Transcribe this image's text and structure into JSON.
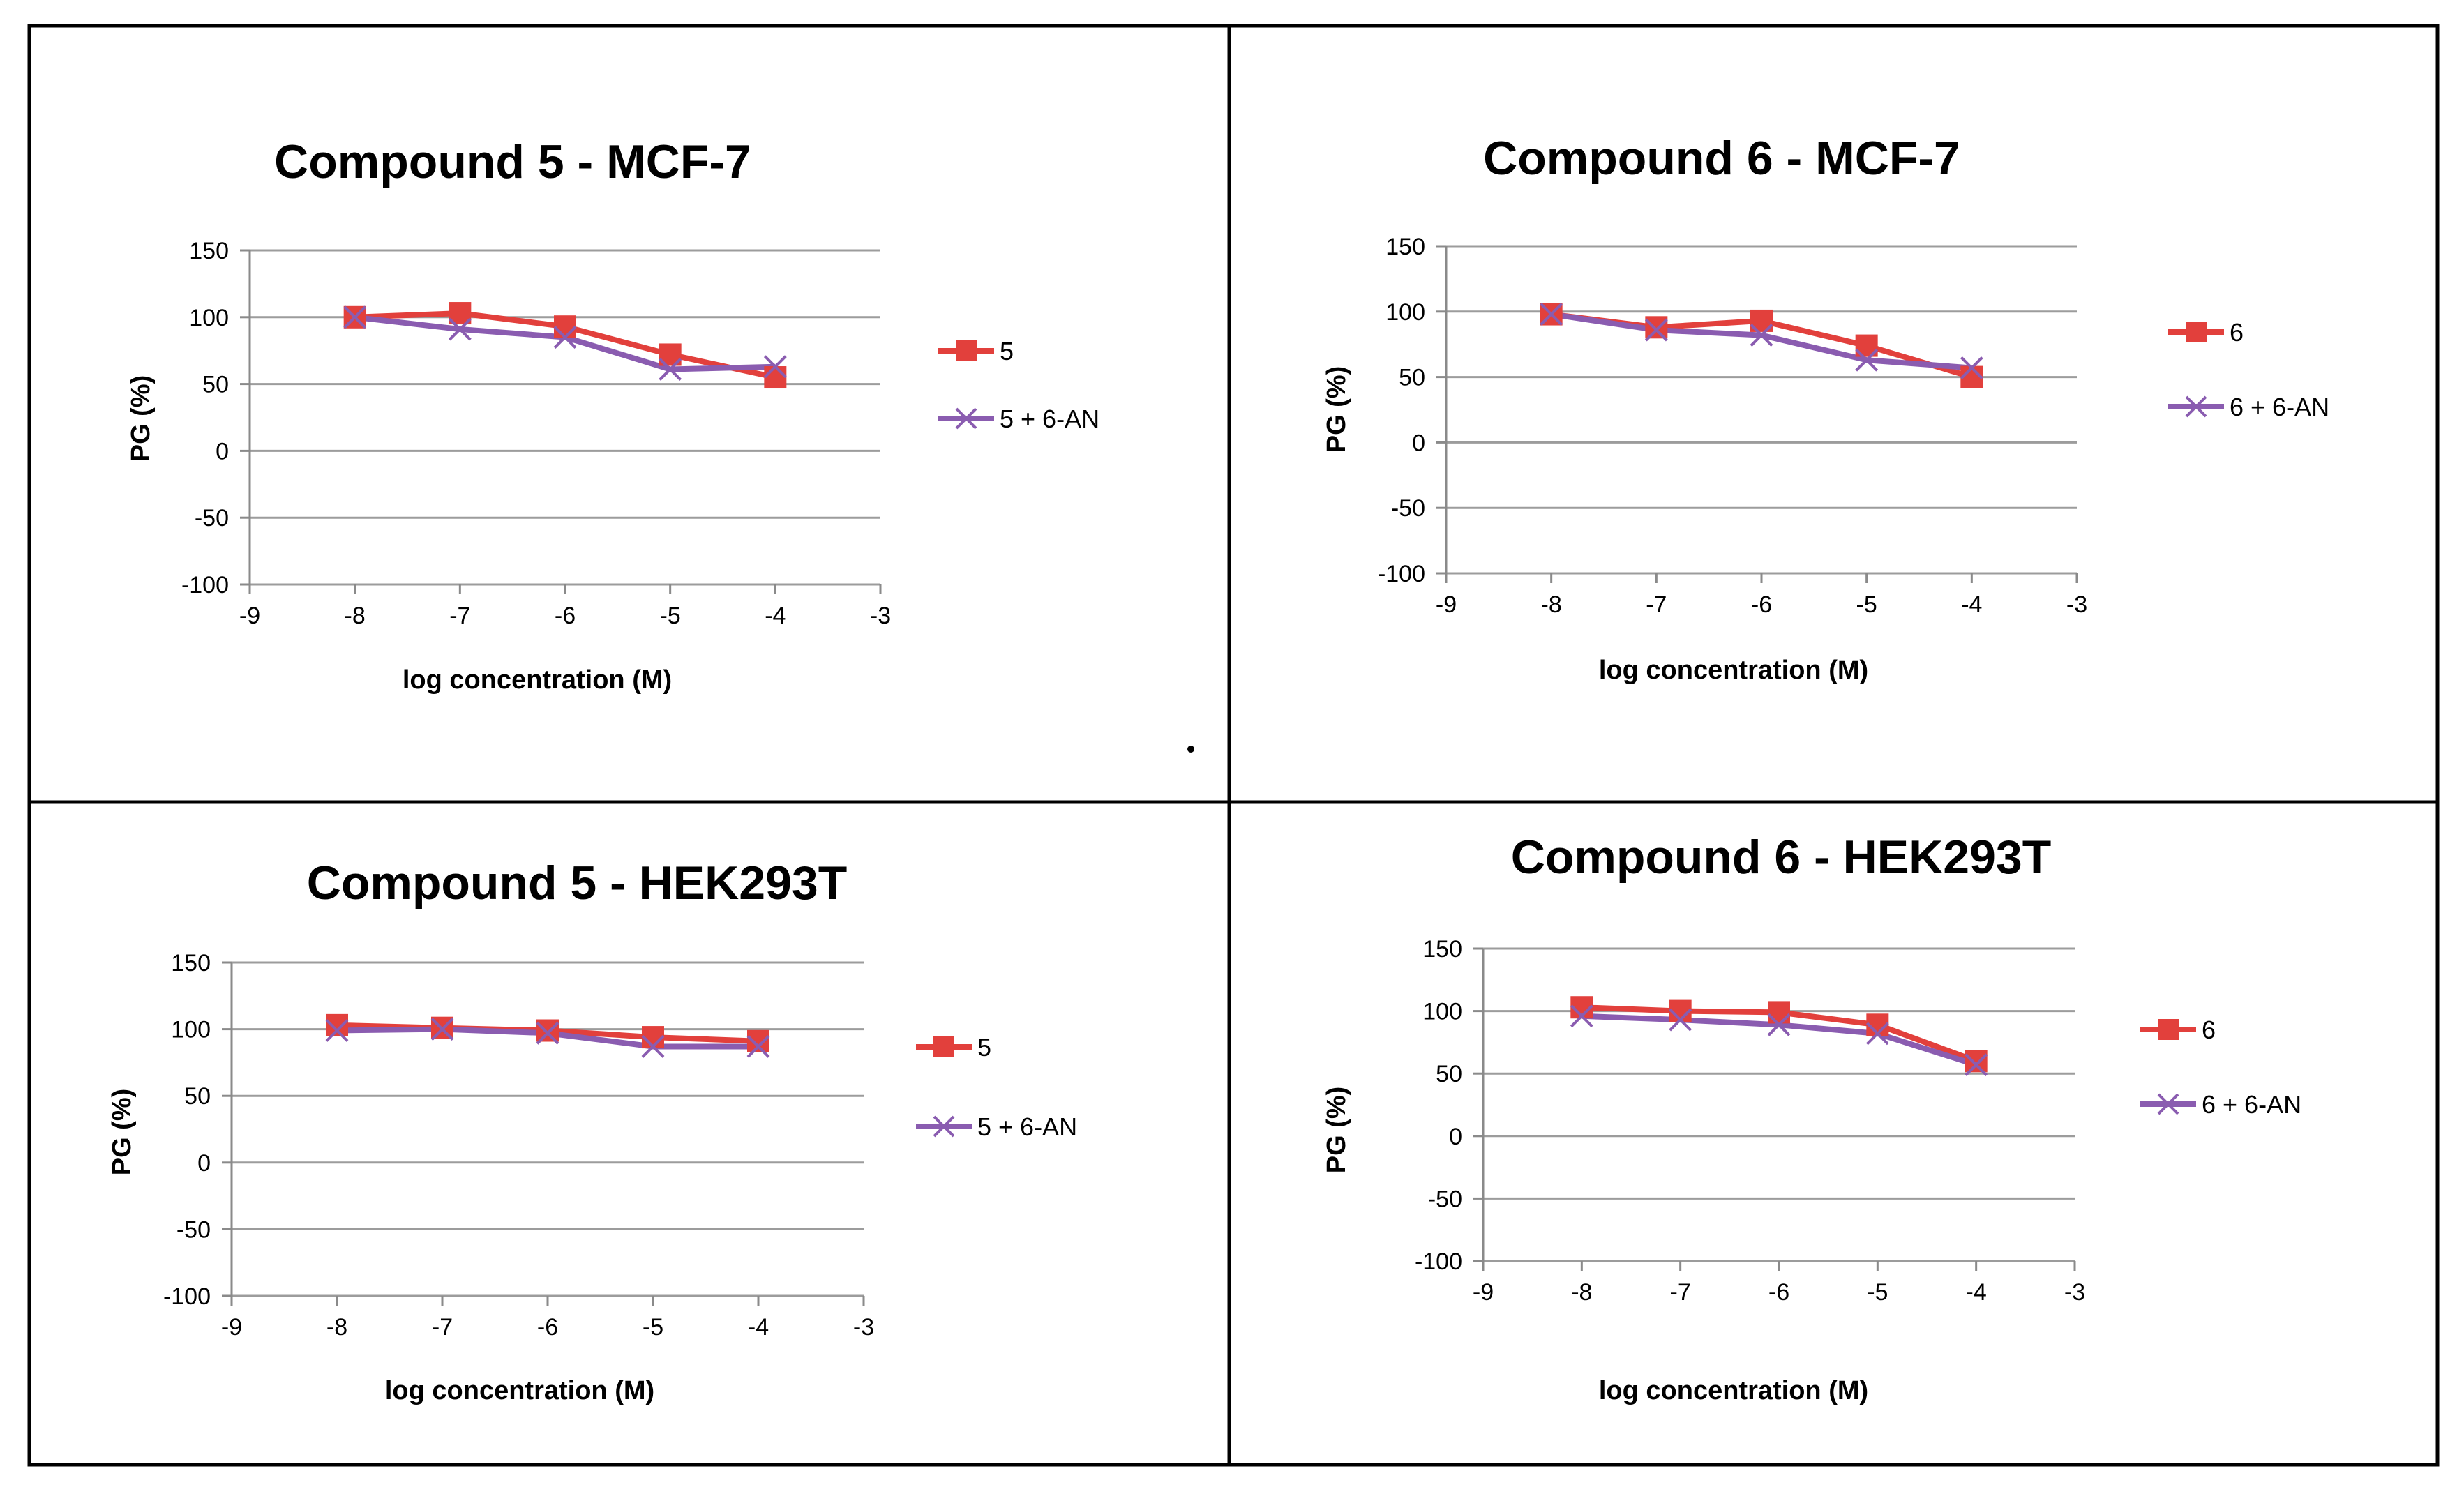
{
  "colors": {
    "series_a": "#e2403c",
    "series_b": "#8a5cb0",
    "grid": "#9c9c9c",
    "frame": "#000000"
  },
  "chart_data": [
    {
      "type": "line",
      "title": "Compound 5 - MCF-7",
      "xlabel": "log concentration (M)",
      "ylabel": "PG (%)",
      "xlim": [
        -9,
        -3
      ],
      "ylim": [
        -100,
        150
      ],
      "xticks": [
        -9,
        -8,
        -7,
        -6,
        -5,
        -4,
        -3
      ],
      "yticks": [
        150,
        100,
        50,
        0,
        -50,
        -100
      ],
      "legend_position": "right",
      "x": [
        -8,
        -7,
        -6,
        -5,
        -4
      ],
      "series": [
        {
          "name": "5",
          "values": [
            100,
            103,
            93,
            72,
            55
          ],
          "marker": "square"
        },
        {
          "name": "5 + 6-AN",
          "values": [
            100,
            91,
            85,
            61,
            63
          ],
          "marker": "x"
        }
      ]
    },
    {
      "type": "line",
      "title": "Compound 6 - MCF-7",
      "xlabel": "log concentration (M)",
      "ylabel": "PG (%)",
      "xlim": [
        -9,
        -3
      ],
      "ylim": [
        -100,
        150
      ],
      "xticks": [
        -9,
        -8,
        -7,
        -6,
        -5,
        -4,
        -3
      ],
      "yticks": [
        150,
        100,
        50,
        0,
        -50,
        -100
      ],
      "legend_position": "right",
      "x": [
        -8,
        -7,
        -6,
        -5,
        -4
      ],
      "series": [
        {
          "name": "6",
          "values": [
            98,
            88,
            93,
            74,
            50
          ],
          "marker": "square"
        },
        {
          "name": "6 + 6-AN",
          "values": [
            98,
            86,
            82,
            63,
            57
          ],
          "marker": "x"
        }
      ]
    },
    {
      "type": "line",
      "title": "Compound  5 - HEK293T",
      "xlabel": "log concentration (M)",
      "ylabel": "PG (%)",
      "xlim": [
        -9,
        -3
      ],
      "ylim": [
        -100,
        150
      ],
      "xticks": [
        -9,
        -8,
        -7,
        -6,
        -5,
        -4,
        -3
      ],
      "yticks": [
        150,
        100,
        50,
        0,
        -50,
        -100
      ],
      "legend_position": "right",
      "x": [
        -8,
        -7,
        -6,
        -5,
        -4
      ],
      "series": [
        {
          "name": "5",
          "values": [
            103,
            101,
            99,
            94,
            91
          ],
          "marker": "square"
        },
        {
          "name": "5 + 6-AN",
          "values": [
            99,
            100,
            97,
            87,
            87
          ],
          "marker": "x"
        }
      ]
    },
    {
      "type": "line",
      "title": "Compound 6  - HEK293T",
      "xlabel": "log concentration (M)",
      "ylabel": "PG (%)",
      "xlim": [
        -9,
        -3
      ],
      "ylim": [
        -100,
        150
      ],
      "xticks": [
        -9,
        -8,
        -7,
        -6,
        -5,
        -4,
        -3
      ],
      "yticks": [
        150,
        100,
        50,
        0,
        -50,
        -100
      ],
      "legend_position": "right",
      "x": [
        -8,
        -7,
        -6,
        -5,
        -4
      ],
      "series": [
        {
          "name": "6",
          "values": [
            103,
            100,
            99,
            89,
            60
          ],
          "marker": "square"
        },
        {
          "name": "6 + 6-AN",
          "values": [
            96,
            93,
            89,
            82,
            57
          ],
          "marker": "x"
        }
      ]
    }
  ]
}
